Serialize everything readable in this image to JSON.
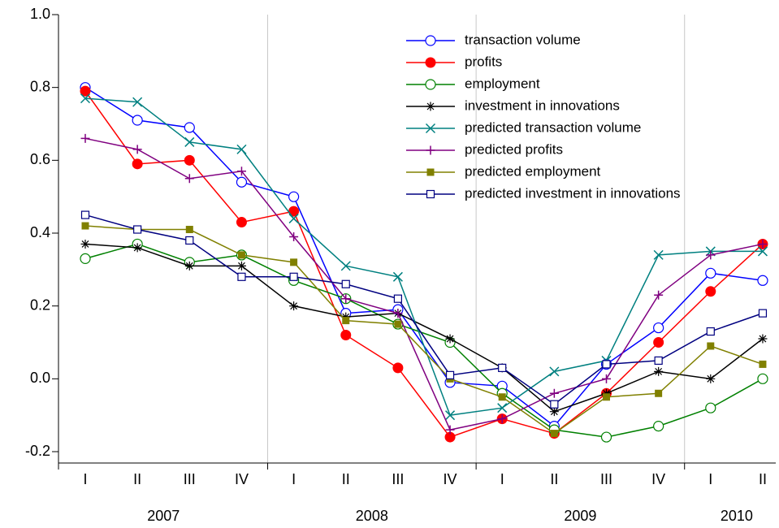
{
  "chart_data": {
    "type": "line",
    "categories": [
      "I",
      "II",
      "III",
      "IV",
      "I",
      "II",
      "III",
      "IV",
      "I",
      "II",
      "III",
      "IV",
      "I",
      "II"
    ],
    "years": [
      "2007",
      "2008",
      "2009",
      "2010"
    ],
    "ylim": [
      -0.2,
      1.0
    ],
    "yticks": [
      {
        "value": 1.0,
        "label": "1.0"
      },
      0.8,
      0.6,
      0.4,
      0.2,
      {
        "value": 0.0,
        "label": "0.0"
      },
      -0.2
    ],
    "legend": "upper right",
    "series": [
      {
        "name": "transaction volume",
        "color": "#0000ff",
        "marker": "open-circle",
        "values": [
          0.8,
          0.71,
          0.69,
          0.54,
          0.5,
          0.18,
          0.19,
          -0.01,
          -0.02,
          -0.13,
          0.04,
          0.14,
          0.29,
          0.27
        ]
      },
      {
        "name": "profits",
        "color": "#ff0000",
        "marker": "filled-circle",
        "values": [
          0.79,
          0.59,
          0.6,
          0.43,
          0.46,
          0.12,
          0.03,
          -0.16,
          -0.11,
          -0.15,
          -0.04,
          0.1,
          0.24,
          0.37
        ]
      },
      {
        "name": "employment",
        "color": "#008000",
        "marker": "open-circle",
        "values": [
          0.33,
          0.37,
          0.32,
          0.34,
          0.27,
          0.22,
          0.15,
          0.1,
          -0.04,
          -0.14,
          -0.16,
          -0.13,
          -0.08,
          0.0
        ]
      },
      {
        "name": "investment in innovations",
        "color": "#000000",
        "marker": "star",
        "values": [
          0.37,
          0.36,
          0.31,
          0.31,
          0.2,
          0.17,
          0.18,
          0.11,
          0.03,
          -0.09,
          -0.04,
          0.02,
          0.0,
          0.11
        ]
      },
      {
        "name": "predicted transaction volume",
        "color": "#008080",
        "marker": "x",
        "values": [
          0.77,
          0.76,
          0.65,
          0.63,
          0.44,
          0.31,
          0.28,
          -0.1,
          -0.08,
          0.02,
          0.05,
          0.34,
          0.35,
          0.35
        ]
      },
      {
        "name": "predicted profits",
        "color": "#800080",
        "marker": "plus",
        "values": [
          0.66,
          0.63,
          0.55,
          0.57,
          0.39,
          0.22,
          0.18,
          -0.14,
          -0.11,
          -0.04,
          0.0,
          0.23,
          0.34,
          0.37
        ]
      },
      {
        "name": "predicted employment",
        "color": "#808000",
        "marker": "filled-square",
        "values": [
          0.42,
          0.41,
          0.41,
          0.34,
          0.32,
          0.16,
          0.15,
          0.0,
          -0.05,
          -0.15,
          -0.05,
          -0.04,
          0.09,
          0.04
        ]
      },
      {
        "name": "predicted investment in innovations",
        "color": "#000080",
        "marker": "open-square",
        "values": [
          0.45,
          0.41,
          0.38,
          0.28,
          0.28,
          0.26,
          0.22,
          0.01,
          0.03,
          -0.07,
          0.04,
          0.05,
          0.13,
          0.18
        ]
      }
    ]
  }
}
